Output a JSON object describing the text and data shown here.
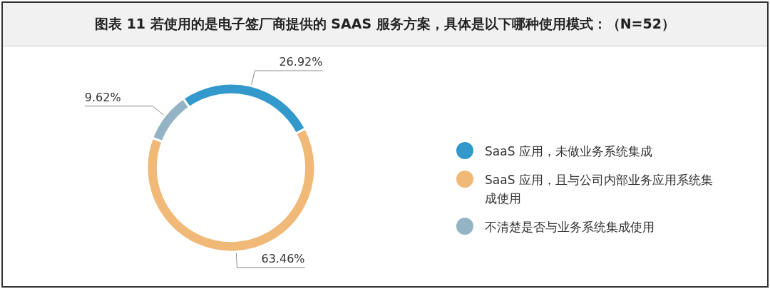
{
  "chart_data": {
    "type": "donut",
    "title": "图表 11  若使用的是电子签厂商提供的 SAAS 服务方案，具体是以下哪种使用模式：（N=52）",
    "categories": [
      "SaaS 应用，未做业务系统集成",
      "SaaS 应用，且与公司内部业务应用系统集成使用",
      "不清楚是否与业务系统集成使用"
    ],
    "values": [
      26.92,
      63.46,
      9.62
    ],
    "colors": [
      "#3399cc",
      "#f0b978",
      "#94b4c6"
    ],
    "value_labels": [
      "26.92%",
      "63.46%",
      "9.62%"
    ],
    "legend": "right"
  }
}
